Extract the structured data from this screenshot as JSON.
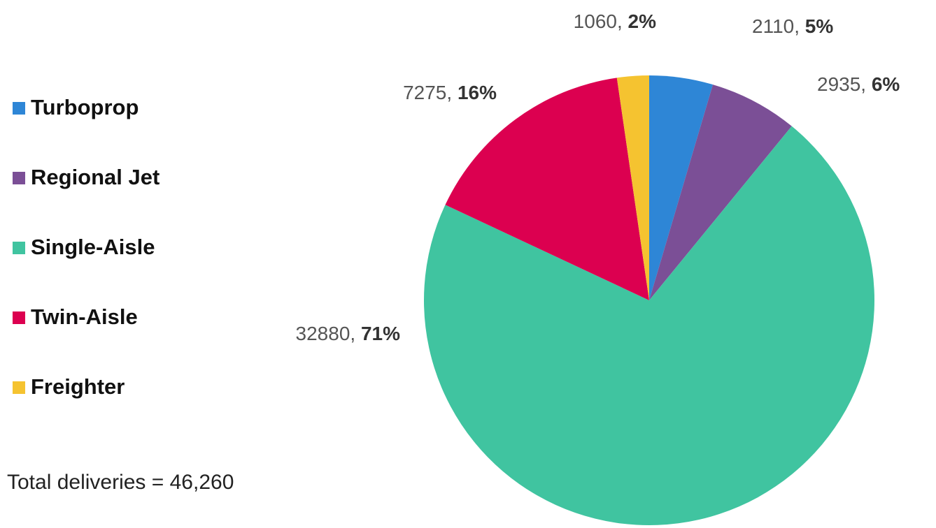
{
  "chart_data": {
    "type": "pie",
    "categories": [
      "Turboprop",
      "Regional Jet",
      "Single-Aisle",
      "Twin-Aisle",
      "Freighter"
    ],
    "values": [
      2110,
      2935,
      32880,
      7275,
      1060
    ],
    "value_labels": [
      "2110, 5%",
      "2935, 6%",
      "32880, 71%",
      "7275, 16%",
      "1060, 2%"
    ],
    "colors": [
      "#2e86d6",
      "#7b4f96",
      "#40c4a0",
      "#dc0050",
      "#f5c330"
    ],
    "legend": "left",
    "annotation": "Total deliveries = 46,260"
  }
}
